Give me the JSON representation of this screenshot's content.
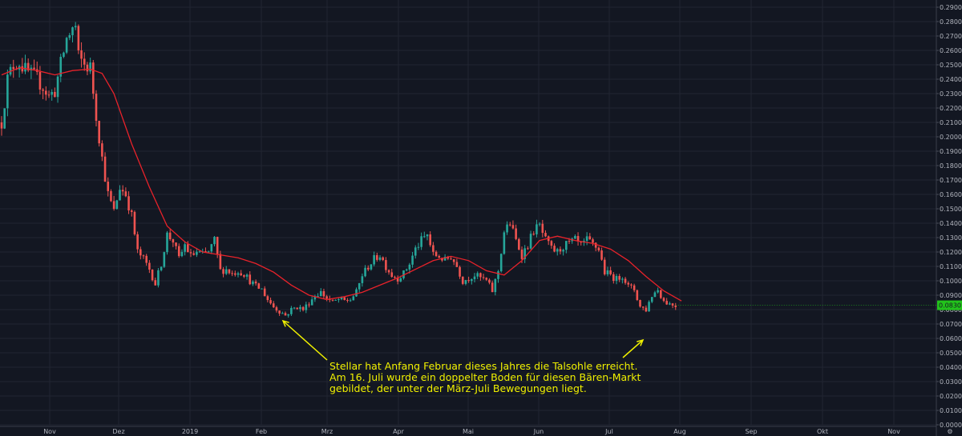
{
  "chart_data": {
    "type": "candlestick",
    "title": "",
    "xlabel": "",
    "ylabel": "",
    "ylim": [
      0.0,
      0.29
    ],
    "y_tick_labels": [
      "0.2900000",
      "0.2800000",
      "0.2700000",
      "0.2600000",
      "0.2500000",
      "0.2400000",
      "0.2300000",
      "0.2200000",
      "0.2100000",
      "0.2000000",
      "0.1900000",
      "0.1800000",
      "0.1700000",
      "0.1600000",
      "0.1500000",
      "0.1400000",
      "0.1300000",
      "0.1200000",
      "0.1100000",
      "0.1000000",
      "0.0900000",
      "0.0800000",
      "0.0700000",
      "0.0600000",
      "0.0500000",
      "0.0400000",
      "0.0300000",
      "0.0200000",
      "0.0100000",
      "0.0000000"
    ],
    "x_tick_labels": [
      "Nov",
      "Dez",
      "2019",
      "Feb",
      "Mrz",
      "Apr",
      "Mai",
      "Jun",
      "Jul",
      "Aug",
      "Sep",
      "Okt",
      "Nov"
    ],
    "grid": true,
    "series": [
      {
        "name": "",
        "kind": "candles",
        "close_path": [
          [
            0,
            0.21
          ],
          [
            5,
            0.24
          ],
          [
            10,
            0.25
          ],
          [
            15,
            0.252
          ],
          [
            20,
            0.246
          ],
          [
            25,
            0.243
          ],
          [
            30,
            0.24
          ],
          [
            35,
            0.235
          ],
          [
            40,
            0.228
          ],
          [
            45,
            0.232
          ],
          [
            50,
            0.25
          ],
          [
            55,
            0.268
          ],
          [
            60,
            0.275
          ],
          [
            62,
            0.28
          ],
          [
            65,
            0.255
          ],
          [
            70,
            0.25
          ],
          [
            75,
            0.248
          ],
          [
            80,
            0.215
          ],
          [
            85,
            0.185
          ],
          [
            90,
            0.16
          ],
          [
            95,
            0.148
          ],
          [
            100,
            0.165
          ],
          [
            105,
            0.16
          ],
          [
            110,
            0.145
          ],
          [
            115,
            0.12
          ],
          [
            120,
            0.115
          ],
          [
            125,
            0.108
          ],
          [
            130,
            0.098
          ],
          [
            135,
            0.112
          ],
          [
            140,
            0.132
          ],
          [
            145,
            0.128
          ],
          [
            150,
            0.115
          ],
          [
            155,
            0.125
          ],
          [
            160,
            0.117
          ],
          [
            165,
            0.12
          ],
          [
            170,
            0.118
          ],
          [
            175,
            0.12
          ],
          [
            180,
            0.128
          ],
          [
            185,
            0.107
          ],
          [
            190,
            0.108
          ],
          [
            195,
            0.105
          ],
          [
            200,
            0.107
          ],
          [
            205,
            0.105
          ],
          [
            210,
            0.1
          ],
          [
            215,
            0.096
          ],
          [
            220,
            0.094
          ],
          [
            225,
            0.087
          ],
          [
            230,
            0.082
          ],
          [
            235,
            0.079
          ],
          [
            240,
            0.076
          ],
          [
            245,
            0.08
          ],
          [
            250,
            0.082
          ],
          [
            255,
            0.08
          ],
          [
            260,
            0.085
          ],
          [
            265,
            0.09
          ],
          [
            270,
            0.092
          ],
          [
            275,
            0.088
          ],
          [
            280,
            0.085
          ],
          [
            285,
            0.087
          ],
          [
            290,
            0.086
          ],
          [
            295,
            0.087
          ],
          [
            300,
            0.092
          ],
          [
            305,
            0.104
          ],
          [
            310,
            0.11
          ],
          [
            315,
            0.115
          ],
          [
            320,
            0.118
          ],
          [
            325,
            0.11
          ],
          [
            330,
            0.104
          ],
          [
            335,
            0.102
          ],
          [
            340,
            0.105
          ],
          [
            345,
            0.112
          ],
          [
            350,
            0.122
          ],
          [
            355,
            0.128
          ],
          [
            360,
            0.132
          ],
          [
            365,
            0.118
          ],
          [
            370,
            0.117
          ],
          [
            375,
            0.114
          ],
          [
            380,
            0.117
          ],
          [
            385,
            0.11
          ],
          [
            390,
            0.1
          ],
          [
            395,
            0.102
          ],
          [
            400,
            0.104
          ],
          [
            405,
            0.102
          ],
          [
            410,
            0.1
          ],
          [
            415,
            0.093
          ],
          [
            420,
            0.107
          ],
          [
            425,
            0.134
          ],
          [
            430,
            0.14
          ],
          [
            435,
            0.128
          ],
          [
            440,
            0.118
          ],
          [
            445,
            0.125
          ],
          [
            450,
            0.135
          ],
          [
            455,
            0.138
          ],
          [
            460,
            0.128
          ],
          [
            465,
            0.122
          ],
          [
            470,
            0.12
          ],
          [
            475,
            0.124
          ],
          [
            480,
            0.126
          ],
          [
            485,
            0.128
          ],
          [
            490,
            0.124
          ],
          [
            495,
            0.128
          ],
          [
            500,
            0.125
          ],
          [
            505,
            0.122
          ],
          [
            510,
            0.106
          ],
          [
            515,
            0.104
          ],
          [
            520,
            0.101
          ],
          [
            525,
            0.104
          ],
          [
            530,
            0.096
          ],
          [
            535,
            0.094
          ],
          [
            540,
            0.082
          ],
          [
            545,
            0.08
          ],
          [
            550,
            0.09
          ],
          [
            555,
            0.094
          ],
          [
            560,
            0.086
          ],
          [
            565,
            0.084
          ],
          [
            570,
            0.083
          ]
        ]
      },
      {
        "name": "",
        "kind": "moving-average",
        "points": [
          [
            0,
            0.243
          ],
          [
            15,
            0.248
          ],
          [
            30,
            0.246
          ],
          [
            45,
            0.243
          ],
          [
            60,
            0.246
          ],
          [
            75,
            0.247
          ],
          [
            85,
            0.244
          ],
          [
            95,
            0.23
          ],
          [
            110,
            0.195
          ],
          [
            125,
            0.165
          ],
          [
            140,
            0.138
          ],
          [
            155,
            0.127
          ],
          [
            170,
            0.12
          ],
          [
            185,
            0.118
          ],
          [
            200,
            0.116
          ],
          [
            215,
            0.112
          ],
          [
            230,
            0.106
          ],
          [
            245,
            0.097
          ],
          [
            260,
            0.09
          ],
          [
            275,
            0.087
          ],
          [
            290,
            0.089
          ],
          [
            305,
            0.092
          ],
          [
            320,
            0.097
          ],
          [
            335,
            0.102
          ],
          [
            350,
            0.108
          ],
          [
            365,
            0.114
          ],
          [
            380,
            0.117
          ],
          [
            395,
            0.114
          ],
          [
            410,
            0.107
          ],
          [
            425,
            0.104
          ],
          [
            440,
            0.114
          ],
          [
            455,
            0.128
          ],
          [
            470,
            0.131
          ],
          [
            485,
            0.128
          ],
          [
            500,
            0.126
          ],
          [
            515,
            0.122
          ],
          [
            530,
            0.114
          ],
          [
            545,
            0.103
          ],
          [
            560,
            0.093
          ],
          [
            575,
            0.086
          ]
        ]
      }
    ],
    "last_price_label": "0.0830150",
    "annotation": {
      "lines": [
        "Stellar hat Anfang Februar dieses Jahres die Talsohle erreicht.",
        "Am 16. Juli wurde ein doppelter Boden für diesen Bären-Markt",
        "gebildet, der unter der März-Juli Bewegungen liegt."
      ]
    },
    "colors": {
      "background": "#131722",
      "grid": "#222632",
      "up": "#26a69a",
      "down": "#ef5350",
      "ma": "#e8222a",
      "annotation": "#f0f000",
      "price_tag": "#22c31b"
    }
  }
}
